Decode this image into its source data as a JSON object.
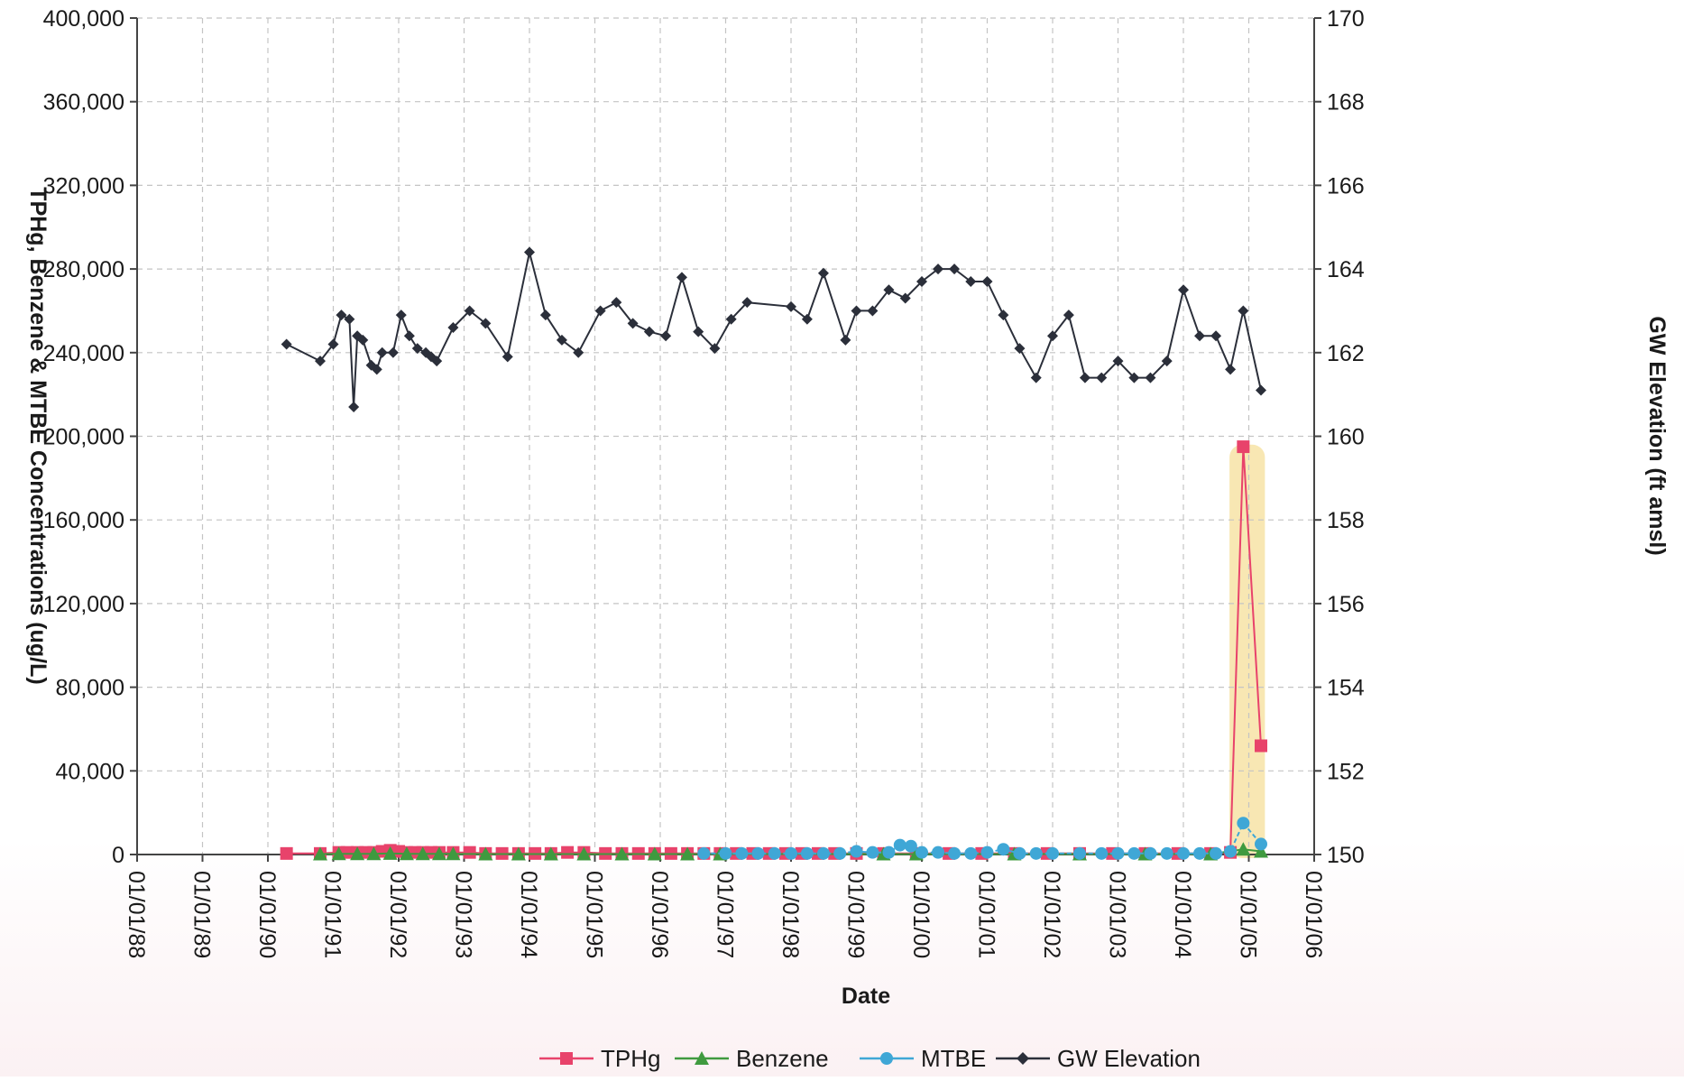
{
  "chart_data": {
    "type": "line",
    "title": "",
    "xlabel": "Date",
    "ylabel_left": "TPHg, Benzene & MTBE Concentrations (ug/L)",
    "ylabel_right": "GW Elevation (ft amsl)",
    "x_axis": {
      "type": "date",
      "range": [
        "1988-01-01",
        "2006-01-01"
      ],
      "tick_labels": [
        "01/01/88",
        "01/01/89",
        "01/01/90",
        "01/01/91",
        "01/01/92",
        "01/01/93",
        "01/01/94",
        "01/01/95",
        "01/01/96",
        "01/01/97",
        "01/01/98",
        "01/01/99",
        "01/01/00",
        "01/01/01",
        "01/01/02",
        "01/01/03",
        "01/01/04",
        "01/01/05",
        "01/01/06"
      ]
    },
    "y_left": {
      "range": [
        0,
        400000
      ],
      "tick_labels": [
        "0",
        "40,000",
        "80,000",
        "120,000",
        "160,000",
        "200,000",
        "240,000",
        "280,000",
        "320,000",
        "360,000",
        "400,000"
      ]
    },
    "y_right": {
      "range": [
        150,
        170
      ],
      "tick_labels": [
        "150",
        "152",
        "154",
        "156",
        "158",
        "160",
        "162",
        "164",
        "166",
        "168",
        "170"
      ]
    },
    "grid": true,
    "legend_placement": "bottom",
    "highlight_band": {
      "x": [
        "2004-09-15",
        "2005-04-01"
      ],
      "color": "#f7e3a6"
    },
    "series": [
      {
        "name": "TPHg",
        "axis": "left",
        "color": "#e8436b",
        "marker": "square",
        "points": [
          [
            "1990-04-15",
            500
          ],
          [
            "1990-10-20",
            500
          ],
          [
            "1991-02-01",
            1000
          ],
          [
            "1991-03-20",
            1000
          ],
          [
            "1991-05-15",
            1000
          ],
          [
            "1991-07-01",
            1000
          ],
          [
            "1991-08-15",
            1000
          ],
          [
            "1991-10-01",
            1500
          ],
          [
            "1991-11-15",
            2000
          ],
          [
            "1992-01-01",
            1500
          ],
          [
            "1992-02-15",
            1000
          ],
          [
            "1992-04-01",
            1000
          ],
          [
            "1992-05-15",
            1000
          ],
          [
            "1992-07-01",
            1000
          ],
          [
            "1992-08-15",
            1000
          ],
          [
            "1992-11-01",
            1000
          ],
          [
            "1993-02-01",
            1000
          ],
          [
            "1993-05-01",
            500
          ],
          [
            "1993-08-01",
            500
          ],
          [
            "1993-11-01",
            500
          ],
          [
            "1994-02-01",
            500
          ],
          [
            "1994-05-01",
            500
          ],
          [
            "1994-08-01",
            1000
          ],
          [
            "1994-11-01",
            1000
          ],
          [
            "1995-03-01",
            500
          ],
          [
            "1995-06-01",
            500
          ],
          [
            "1995-09-01",
            500
          ],
          [
            "1995-12-01",
            500
          ],
          [
            "1996-03-01",
            500
          ],
          [
            "1996-06-01",
            500
          ],
          [
            "1996-09-01",
            500
          ],
          [
            "1996-12-01",
            500
          ],
          [
            "1997-03-01",
            500
          ],
          [
            "1997-06-01",
            500
          ],
          [
            "1997-09-01",
            500
          ],
          [
            "1997-12-01",
            500
          ],
          [
            "1998-03-01",
            500
          ],
          [
            "1998-06-01",
            500
          ],
          [
            "1998-09-01",
            500
          ],
          [
            "1999-01-01",
            500
          ],
          [
            "1999-06-01",
            500
          ],
          [
            "1999-12-01",
            500
          ],
          [
            "2000-06-01",
            500
          ],
          [
            "2000-12-01",
            500
          ],
          [
            "2001-06-01",
            500
          ],
          [
            "2001-12-01",
            500
          ],
          [
            "2002-06-01",
            500
          ],
          [
            "2002-12-01",
            500
          ],
          [
            "2003-06-01",
            500
          ],
          [
            "2003-12-01",
            500
          ],
          [
            "2004-06-01",
            500
          ],
          [
            "2004-09-20",
            1000
          ],
          [
            "2004-12-01",
            195000
          ],
          [
            "2005-03-10",
            52000
          ]
        ]
      },
      {
        "name": "Benzene",
        "axis": "left",
        "color": "#3f9a3f",
        "marker": "triangle",
        "points": [
          [
            "1990-10-20",
            200
          ],
          [
            "1991-02-01",
            300
          ],
          [
            "1991-05-15",
            300
          ],
          [
            "1991-08-15",
            300
          ],
          [
            "1991-11-15",
            500
          ],
          [
            "1992-02-15",
            300
          ],
          [
            "1992-05-15",
            300
          ],
          [
            "1992-08-15",
            300
          ],
          [
            "1992-11-01",
            300
          ],
          [
            "1993-05-01",
            200
          ],
          [
            "1993-11-01",
            200
          ],
          [
            "1994-05-01",
            200
          ],
          [
            "1994-11-01",
            200
          ],
          [
            "1995-06-01",
            200
          ],
          [
            "1995-12-01",
            200
          ],
          [
            "1996-06-01",
            200
          ],
          [
            "1996-12-01",
            200
          ],
          [
            "1999-06-01",
            200
          ],
          [
            "1999-12-01",
            200
          ],
          [
            "2001-06-01",
            200
          ],
          [
            "2002-06-01",
            200
          ],
          [
            "2003-06-01",
            200
          ],
          [
            "2004-06-01",
            200
          ],
          [
            "2004-12-01",
            2500
          ],
          [
            "2005-03-10",
            1500
          ]
        ]
      },
      {
        "name": "MTBE",
        "axis": "left",
        "color": "#3fa7d6",
        "marker": "circle",
        "points": [
          [
            "1996-09-01",
            500
          ],
          [
            "1997-01-01",
            500
          ],
          [
            "1997-04-01",
            500
          ],
          [
            "1997-07-01",
            500
          ],
          [
            "1997-10-01",
            500
          ],
          [
            "1998-01-01",
            500
          ],
          [
            "1998-04-01",
            500
          ],
          [
            "1998-07-01",
            500
          ],
          [
            "1998-10-01",
            500
          ],
          [
            "1999-01-01",
            1500
          ],
          [
            "1999-04-01",
            1000
          ],
          [
            "1999-07-01",
            1000
          ],
          [
            "1999-09-01",
            4500
          ],
          [
            "1999-11-01",
            4000
          ],
          [
            "2000-01-01",
            1000
          ],
          [
            "2000-04-01",
            1000
          ],
          [
            "2000-07-01",
            500
          ],
          [
            "2000-10-01",
            500
          ],
          [
            "2001-01-01",
            1000
          ],
          [
            "2001-04-01",
            2500
          ],
          [
            "2001-07-01",
            500
          ],
          [
            "2001-10-01",
            500
          ],
          [
            "2002-01-01",
            500
          ],
          [
            "2002-06-01",
            500
          ],
          [
            "2002-10-01",
            500
          ],
          [
            "2003-01-01",
            500
          ],
          [
            "2003-04-01",
            500
          ],
          [
            "2003-07-01",
            500
          ],
          [
            "2003-10-01",
            500
          ],
          [
            "2004-01-01",
            500
          ],
          [
            "2004-04-01",
            500
          ],
          [
            "2004-07-01",
            500
          ],
          [
            "2004-09-20",
            1500
          ],
          [
            "2004-12-01",
            15000
          ],
          [
            "2005-03-10",
            5000
          ]
        ]
      },
      {
        "name": "GW Elevation",
        "axis": "right",
        "color": "#2b2f3a",
        "marker": "diamond",
        "points": [
          [
            "1990-04-15",
            162.2
          ],
          [
            "1990-10-20",
            161.8
          ],
          [
            "1991-01-01",
            162.2
          ],
          [
            "1991-02-15",
            162.9
          ],
          [
            "1991-04-01",
            162.8
          ],
          [
            "1991-04-25",
            160.7
          ],
          [
            "1991-05-15",
            162.4
          ],
          [
            "1991-06-15",
            162.3
          ],
          [
            "1991-08-01",
            161.7
          ],
          [
            "1991-09-01",
            161.6
          ],
          [
            "1991-10-01",
            162.0
          ],
          [
            "1991-12-01",
            162.0
          ],
          [
            "1992-01-15",
            162.9
          ],
          [
            "1992-03-01",
            162.4
          ],
          [
            "1992-04-15",
            162.1
          ],
          [
            "1992-06-01",
            162.0
          ],
          [
            "1992-07-01",
            161.9
          ],
          [
            "1992-08-01",
            161.8
          ],
          [
            "1992-11-01",
            162.6
          ],
          [
            "1993-02-01",
            163.0
          ],
          [
            "1993-05-01",
            162.7
          ],
          [
            "1993-09-01",
            161.9
          ],
          [
            "1994-01-01",
            164.4
          ],
          [
            "1994-04-01",
            162.9
          ],
          [
            "1994-07-01",
            162.3
          ],
          [
            "1994-10-01",
            162.0
          ],
          [
            "1995-02-01",
            163.0
          ],
          [
            "1995-05-01",
            163.2
          ],
          [
            "1995-08-01",
            162.7
          ],
          [
            "1995-11-01",
            162.5
          ],
          [
            "1996-02-01",
            162.4
          ],
          [
            "1996-05-01",
            163.8
          ],
          [
            "1996-08-01",
            162.5
          ],
          [
            "1996-11-01",
            162.1
          ],
          [
            "1997-02-01",
            162.8
          ],
          [
            "1997-05-01",
            163.2
          ],
          [
            "1998-01-01",
            163.1
          ],
          [
            "1998-04-01",
            162.8
          ],
          [
            "1998-07-01",
            163.9
          ],
          [
            "1998-11-01",
            162.3
          ],
          [
            "1999-01-01",
            163.0
          ],
          [
            "1999-04-01",
            163.0
          ],
          [
            "1999-07-01",
            163.5
          ],
          [
            "1999-10-01",
            163.3
          ],
          [
            "2000-01-01",
            163.7
          ],
          [
            "2000-04-01",
            164.0
          ],
          [
            "2000-07-01",
            164.0
          ],
          [
            "2000-10-01",
            163.7
          ],
          [
            "2001-01-01",
            163.7
          ],
          [
            "2001-04-01",
            162.9
          ],
          [
            "2001-07-01",
            162.1
          ],
          [
            "2001-10-01",
            161.4
          ],
          [
            "2002-01-01",
            162.4
          ],
          [
            "2002-04-01",
            162.9
          ],
          [
            "2002-07-01",
            161.4
          ],
          [
            "2002-10-01",
            161.4
          ],
          [
            "2003-01-01",
            161.8
          ],
          [
            "2003-04-01",
            161.4
          ],
          [
            "2003-07-01",
            161.4
          ],
          [
            "2003-10-01",
            161.8
          ],
          [
            "2004-01-01",
            163.5
          ],
          [
            "2004-04-01",
            162.4
          ],
          [
            "2004-07-01",
            162.4
          ],
          [
            "2004-09-20",
            161.6
          ],
          [
            "2004-12-01",
            163.0
          ],
          [
            "2005-03-10",
            161.1
          ]
        ]
      }
    ]
  }
}
